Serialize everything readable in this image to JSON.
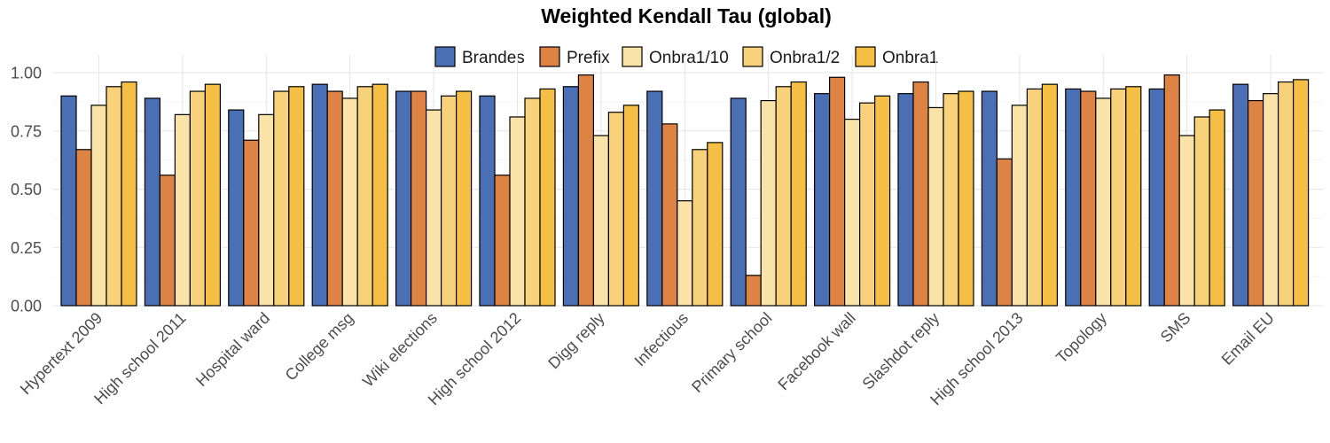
{
  "chart_data": {
    "type": "bar",
    "title": "Weighted Kendall Tau (global)",
    "xlabel": "",
    "ylabel": "",
    "ylim": [
      0,
      1.05
    ],
    "yticks": [
      "0.00",
      "0.25",
      "0.50",
      "0.75",
      "1.00"
    ],
    "ytick_values": [
      0,
      0.25,
      0.5,
      0.75,
      1.0
    ],
    "legend_position": "top",
    "categories": [
      "Hypertext 2009",
      "High school 2011",
      "Hospital ward",
      "College msg",
      "Wiki elections",
      "High school 2012",
      "Digg reply",
      "Infectious",
      "Primary school",
      "Facebook wall",
      "Slashdot reply",
      "High school 2013",
      "Topology",
      "SMS",
      "Email EU"
    ],
    "series": [
      {
        "name": "Brandes",
        "color": "#4a6fb5",
        "values": [
          0.9,
          0.89,
          0.84,
          0.95,
          0.92,
          0.9,
          0.94,
          0.92,
          0.89,
          0.91,
          0.91,
          0.92,
          0.93,
          0.93,
          0.95
        ]
      },
      {
        "name": "Prefix",
        "color": "#dd8445",
        "values": [
          0.67,
          0.56,
          0.71,
          0.92,
          0.92,
          0.56,
          0.99,
          0.78,
          0.13,
          0.98,
          0.96,
          0.63,
          0.92,
          0.99,
          0.88
        ]
      },
      {
        "name": "Onbra1/10",
        "color": "#fae3a8",
        "values": [
          0.86,
          0.82,
          0.82,
          0.89,
          0.84,
          0.81,
          0.73,
          0.45,
          0.88,
          0.8,
          0.85,
          0.86,
          0.89,
          0.73,
          0.91
        ]
      },
      {
        "name": "Onbra1/2",
        "color": "#f8d27a",
        "values": [
          0.94,
          0.92,
          0.92,
          0.94,
          0.9,
          0.89,
          0.83,
          0.67,
          0.94,
          0.87,
          0.91,
          0.93,
          0.93,
          0.81,
          0.96
        ]
      },
      {
        "name": "Onbra1",
        "color": "#f5bf45",
        "values": [
          0.96,
          0.95,
          0.94,
          0.95,
          0.92,
          0.93,
          0.86,
          0.7,
          0.96,
          0.9,
          0.92,
          0.95,
          0.94,
          0.84,
          0.97
        ]
      }
    ]
  }
}
